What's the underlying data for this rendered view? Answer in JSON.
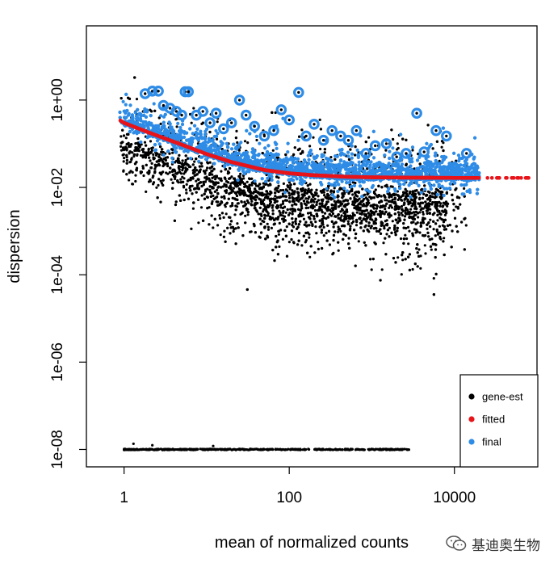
{
  "chart_data": {
    "type": "scatter",
    "title": "",
    "xlabel": "mean of normalized counts",
    "ylabel": "dispersion",
    "x_scale": "log10",
    "y_scale": "log10",
    "xlim": [
      0.35,
      100000
    ],
    "ylim": [
      4e-09,
      50
    ],
    "x_ticks": [
      {
        "value": 1,
        "label": "1"
      },
      {
        "value": 100,
        "label": "100"
      },
      {
        "value": 10000,
        "label": "10000"
      }
    ],
    "y_ticks": [
      {
        "value": 1,
        "label": "1e+00"
      },
      {
        "value": 0.01,
        "label": "1e-02"
      },
      {
        "value": 0.0001,
        "label": "1e-04"
      },
      {
        "value": 1e-06,
        "label": "1e-06"
      },
      {
        "value": 1e-08,
        "label": "1e-08"
      }
    ],
    "legend": {
      "position": "bottom-right",
      "entries": [
        {
          "label": "gene-est",
          "color": "#000000"
        },
        {
          "label": "fitted",
          "color": "#e8141a"
        },
        {
          "label": "final",
          "color": "#2e8ce6"
        }
      ]
    },
    "series": [
      {
        "name": "gene-est",
        "color": "#000000",
        "description": "per-gene dispersion estimates; trend follows fitted curve with spread about 1 decade below; zero-dispersion genes plotted at 1e-08 for mean 1 to 3000",
        "floor_value": 1e-08,
        "floor_x_range": [
          1,
          3000
        ]
      },
      {
        "name": "fitted",
        "color": "#e8141a",
        "x": [
          0.9,
          1,
          2,
          5,
          10,
          20,
          50,
          100,
          200,
          500,
          1000,
          2000,
          5000,
          10000,
          20000,
          50000,
          85000
        ],
        "y": [
          0.34,
          0.3,
          0.18,
          0.095,
          0.058,
          0.038,
          0.025,
          0.021,
          0.019,
          0.0175,
          0.017,
          0.0168,
          0.0166,
          0.0165,
          0.0165,
          0.0165,
          0.0165
        ]
      },
      {
        "name": "final",
        "color": "#2e8ce6",
        "description": "shrunken dispersion estimates clustered just above fitted trend; outliers circled",
        "outliers": [
          {
            "x": 1.8,
            "y": 1.4
          },
          {
            "x": 2.2,
            "y": 1.6
          },
          {
            "x": 2.6,
            "y": 1.6
          },
          {
            "x": 3.0,
            "y": 0.75
          },
          {
            "x": 3.6,
            "y": 0.65
          },
          {
            "x": 4.3,
            "y": 0.55
          },
          {
            "x": 5.0,
            "y": 0.45
          },
          {
            "x": 5.5,
            "y": 1.55
          },
          {
            "x": 6.0,
            "y": 1.55
          },
          {
            "x": 7.5,
            "y": 0.45
          },
          {
            "x": 9.0,
            "y": 0.55
          },
          {
            "x": 11,
            "y": 0.3
          },
          {
            "x": 13,
            "y": 0.5
          },
          {
            "x": 16,
            "y": 0.22
          },
          {
            "x": 20,
            "y": 0.3
          },
          {
            "x": 25,
            "y": 1.0
          },
          {
            "x": 30,
            "y": 0.45
          },
          {
            "x": 38,
            "y": 0.25
          },
          {
            "x": 50,
            "y": 0.15
          },
          {
            "x": 65,
            "y": 0.2
          },
          {
            "x": 80,
            "y": 0.6
          },
          {
            "x": 100,
            "y": 0.35
          },
          {
            "x": 130,
            "y": 1.5
          },
          {
            "x": 160,
            "y": 0.15
          },
          {
            "x": 200,
            "y": 0.28
          },
          {
            "x": 260,
            "y": 0.12
          },
          {
            "x": 330,
            "y": 0.2
          },
          {
            "x": 420,
            "y": 0.15
          },
          {
            "x": 520,
            "y": 0.12
          },
          {
            "x": 650,
            "y": 0.2
          },
          {
            "x": 850,
            "y": 0.06
          },
          {
            "x": 1100,
            "y": 0.09
          },
          {
            "x": 1500,
            "y": 0.1
          },
          {
            "x": 2000,
            "y": 0.05
          },
          {
            "x": 2600,
            "y": 0.06
          },
          {
            "x": 3500,
            "y": 0.5
          },
          {
            "x": 4300,
            "y": 0.065
          },
          {
            "x": 6000,
            "y": 0.2
          },
          {
            "x": 8000,
            "y": 0.15
          },
          {
            "x": 14000,
            "y": 0.06
          }
        ]
      }
    ]
  },
  "watermark": {
    "text": "基迪奥生物",
    "icon": "wechat-icon"
  }
}
